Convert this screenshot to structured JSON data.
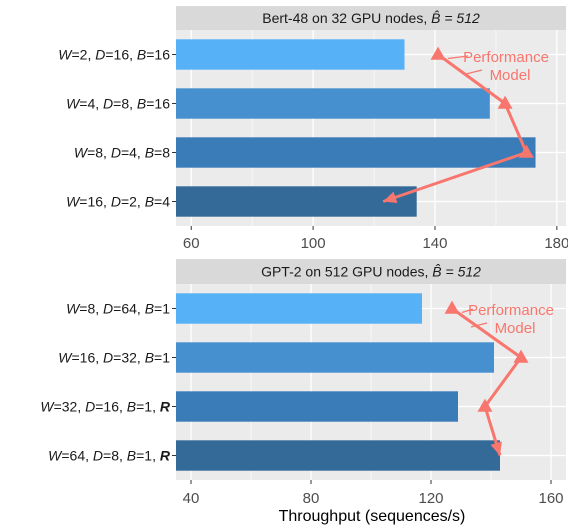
{
  "chart_data": {
    "type": "bar",
    "orientation": "horizontal",
    "xlabel": "Throughput (sequences/s)",
    "colors": {
      "panel_bg": "#ebebeb",
      "strip_bg": "#d9d9d9",
      "grid": "#ffffff",
      "model_line": "#f8766d",
      "bars": [
        "#56b1f7",
        "#4690d0",
        "#3a7cb8",
        "#336a98"
      ]
    },
    "panels": [
      {
        "title_prefix": "Bert-48 on 32 GPU nodes, ",
        "title_math": "B̂ = 512",
        "xlim": [
          55,
          183
        ],
        "xticks": [
          60,
          100,
          140,
          180
        ],
        "annotation": [
          "Performance",
          "Model"
        ],
        "categories": [
          [
            {
              "t": "W",
              "i": true
            },
            {
              "t": "=2, "
            },
            {
              "t": "D",
              "i": true
            },
            {
              "t": "=16, "
            },
            {
              "t": "B",
              "i": true
            },
            {
              "t": "=16"
            }
          ],
          [
            {
              "t": "W",
              "i": true
            },
            {
              "t": "=4, "
            },
            {
              "t": "D",
              "i": true
            },
            {
              "t": "=8, "
            },
            {
              "t": "B",
              "i": true
            },
            {
              "t": "=16"
            }
          ],
          [
            {
              "t": "W",
              "i": true
            },
            {
              "t": "=8, "
            },
            {
              "t": "D",
              "i": true
            },
            {
              "t": "=4, "
            },
            {
              "t": "B",
              "i": true
            },
            {
              "t": "=8"
            }
          ],
          [
            {
              "t": "W",
              "i": true
            },
            {
              "t": "=16, "
            },
            {
              "t": "D",
              "i": true
            },
            {
              "t": "=2, "
            },
            {
              "t": "B",
              "i": true
            },
            {
              "t": "=4"
            }
          ]
        ],
        "measured": [
          130,
          158,
          173,
          134
        ],
        "model": [
          141,
          163,
          170,
          123
        ]
      },
      {
        "title_prefix": "GPT-2 on 512 GPU nodes, ",
        "title_math": "B̂ = 512",
        "xlim": [
          35,
          165
        ],
        "xticks": [
          40,
          80,
          120,
          160
        ],
        "annotation": [
          "Performance",
          "Model"
        ],
        "categories": [
          [
            {
              "t": "W",
              "i": true
            },
            {
              "t": "=8, "
            },
            {
              "t": "D",
              "i": true
            },
            {
              "t": "=64, "
            },
            {
              "t": "B",
              "i": true
            },
            {
              "t": "=1"
            }
          ],
          [
            {
              "t": "W",
              "i": true
            },
            {
              "t": "=16, "
            },
            {
              "t": "D",
              "i": true
            },
            {
              "t": "=32, "
            },
            {
              "t": "B",
              "i": true
            },
            {
              "t": "=1"
            }
          ],
          [
            {
              "t": "W",
              "i": true
            },
            {
              "t": "=32, "
            },
            {
              "t": "D",
              "i": true
            },
            {
              "t": "=16, "
            },
            {
              "t": "B",
              "i": true
            },
            {
              "t": "=1, "
            },
            {
              "t": "R",
              "i": true,
              "b": true
            }
          ],
          [
            {
              "t": "W",
              "i": true
            },
            {
              "t": "=64, "
            },
            {
              "t": "D",
              "i": true
            },
            {
              "t": "=8, "
            },
            {
              "t": "B",
              "i": true
            },
            {
              "t": "=1, "
            },
            {
              "t": "R",
              "i": true,
              "b": true
            }
          ]
        ],
        "measured": [
          117,
          141,
          129,
          143
        ],
        "model": [
          127,
          150,
          138,
          143
        ]
      }
    ]
  }
}
